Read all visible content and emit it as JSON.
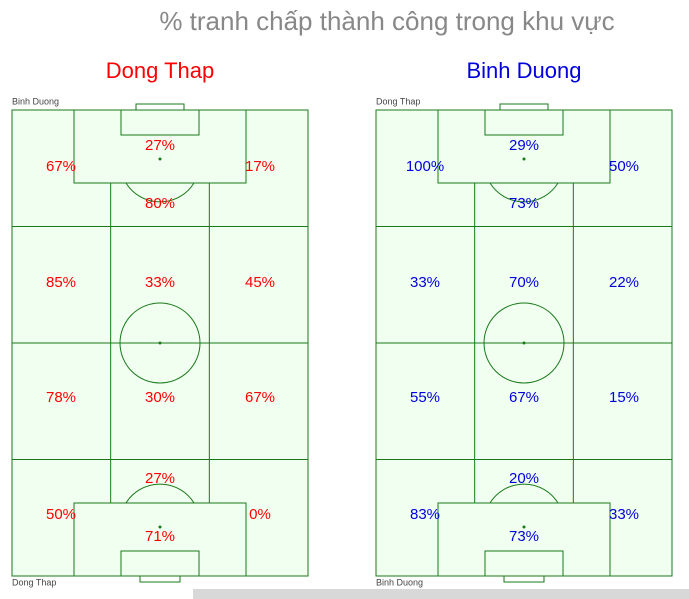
{
  "title": "% tranh chấp thành công trong khu vực",
  "pitches": [
    {
      "team": "Dong Thap",
      "team_color": "#ff0000",
      "top_label": "Binh Duong",
      "bottom_label": "Dong Thap",
      "zones": [
        "67%",
        "27%",
        "80%",
        "17%",
        "85%",
        "33%",
        "45%",
        "78%",
        "30%",
        "67%",
        "50%",
        "27%",
        "71%",
        "0%"
      ]
    },
    {
      "team": "Binh Duong",
      "team_color": "#0000dd",
      "top_label": "Dong Thap",
      "bottom_label": "Binh Duong",
      "zones": [
        "100%",
        "29%",
        "73%",
        "50%",
        "33%",
        "70%",
        "22%",
        "55%",
        "67%",
        "15%",
        "83%",
        "20%",
        "73%",
        "33%"
      ]
    }
  ]
}
